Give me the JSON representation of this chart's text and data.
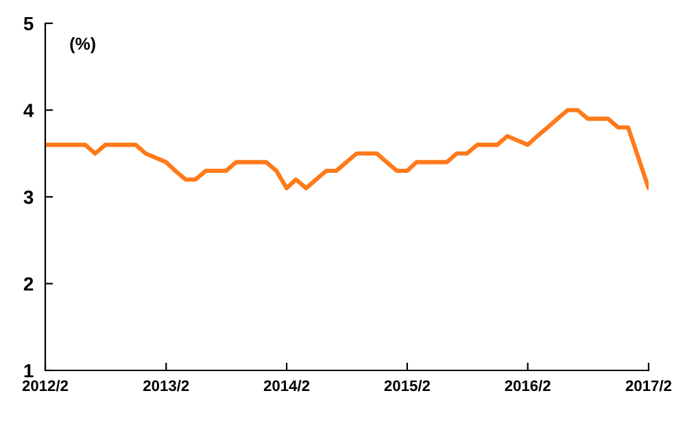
{
  "chart_data": {
    "type": "line",
    "ylabel": "(%)",
    "x": [
      "2012-02",
      "2012-03",
      "2012-04",
      "2012-05",
      "2012-06",
      "2012-07",
      "2012-08",
      "2012-09",
      "2012-10",
      "2012-11",
      "2012-12",
      "2013-01",
      "2013-02",
      "2013-03",
      "2013-04",
      "2013-05",
      "2013-06",
      "2013-07",
      "2013-08",
      "2013-09",
      "2013-10",
      "2013-11",
      "2013-12",
      "2014-01",
      "2014-02",
      "2014-03",
      "2014-04",
      "2014-05",
      "2014-06",
      "2014-07",
      "2014-08",
      "2014-09",
      "2014-10",
      "2014-11",
      "2014-12",
      "2015-01",
      "2015-02",
      "2015-03",
      "2015-04",
      "2015-05",
      "2015-06",
      "2015-07",
      "2015-08",
      "2015-09",
      "2015-10",
      "2015-11",
      "2015-12",
      "2016-01",
      "2016-02",
      "2016-03",
      "2016-04",
      "2016-05",
      "2016-06",
      "2016-07",
      "2016-08",
      "2016-09",
      "2016-10",
      "2016-11",
      "2016-12",
      "2017-02"
    ],
    "series": [
      {
        "color": "#ff7a1a",
        "values": [
          3.6,
          3.6,
          3.6,
          3.6,
          3.6,
          3.5,
          3.6,
          3.6,
          3.6,
          3.6,
          3.5,
          3.45,
          3.4,
          3.3,
          3.2,
          3.2,
          3.3,
          3.3,
          3.3,
          3.4,
          3.4,
          3.4,
          3.4,
          3.3,
          3.1,
          3.2,
          3.1,
          3.2,
          3.3,
          3.3,
          3.4,
          3.5,
          3.5,
          3.5,
          3.4,
          3.3,
          3.3,
          3.4,
          3.4,
          3.4,
          3.4,
          3.5,
          3.5,
          3.6,
          3.6,
          3.6,
          3.7,
          3.65,
          3.6,
          3.7,
          3.8,
          3.9,
          4.0,
          4.0,
          3.9,
          3.9,
          3.9,
          3.8,
          3.8,
          3.1
        ]
      }
    ],
    "xlim": [
      "2012-02",
      "2017-02"
    ],
    "xticks": [
      {
        "value": "2012-02",
        "label": "2012/2"
      },
      {
        "value": "2013-02",
        "label": "2013/2"
      },
      {
        "value": "2014-02",
        "label": "2014/2"
      },
      {
        "value": "2015-02",
        "label": "2015/2"
      },
      {
        "value": "2016-02",
        "label": "2016/2"
      },
      {
        "value": "2017-02",
        "label": "2017/2"
      }
    ],
    "ylim": [
      1,
      5
    ],
    "yticks": [
      1,
      2,
      3,
      4,
      5
    ],
    "grid": false,
    "legend": false,
    "marker": "none",
    "line_style": "solid"
  }
}
